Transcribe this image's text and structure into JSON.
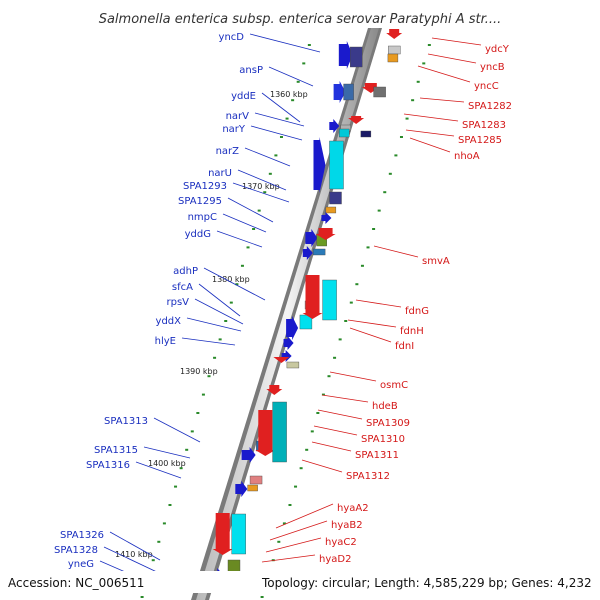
{
  "title": "Salmonella enterica subsp. enterica serovar Paratyphi A str....",
  "footer": {
    "accession": "Accession: NC_006511",
    "summary": "Topology: circular; Length: 4,585,229 bp; Genes: 4,232"
  },
  "colors": {
    "forward_label": "#1a2fbf",
    "reverse_label": "#d41818",
    "backbone": "#8c8c8c",
    "tick": "#2a8a2a"
  },
  "kbp_labels": [
    "1360 kbp",
    "1370 kbp",
    "1380 kbp",
    "1390 kbp",
    "1400 kbp",
    "1410 kbp"
  ],
  "left_genes": [
    "yncD",
    "ansP",
    "yddE",
    "narV",
    "narY",
    "narZ",
    "narU",
    "SPA1293",
    "SPA1295",
    "nmpC",
    "yddG",
    "adhP",
    "sfcA",
    "rpsV",
    "yddX",
    "hlyE",
    "SPA1313",
    "SPA1315",
    "SPA1316",
    "SPA1326",
    "SPA1328",
    "yneG"
  ],
  "right_genes": [
    "ydcY",
    "yncB",
    "yncC",
    "SPA1282",
    "SPA1283",
    "SPA1285",
    "nhoA",
    "smvA",
    "fdnG",
    "fdnH",
    "fdnI",
    "osmC",
    "hdeB",
    "SPA1309",
    "SPA1310",
    "SPA1311",
    "SPA1312",
    "hyaA2",
    "hyaB2",
    "hyaC2",
    "hyaD2"
  ]
}
